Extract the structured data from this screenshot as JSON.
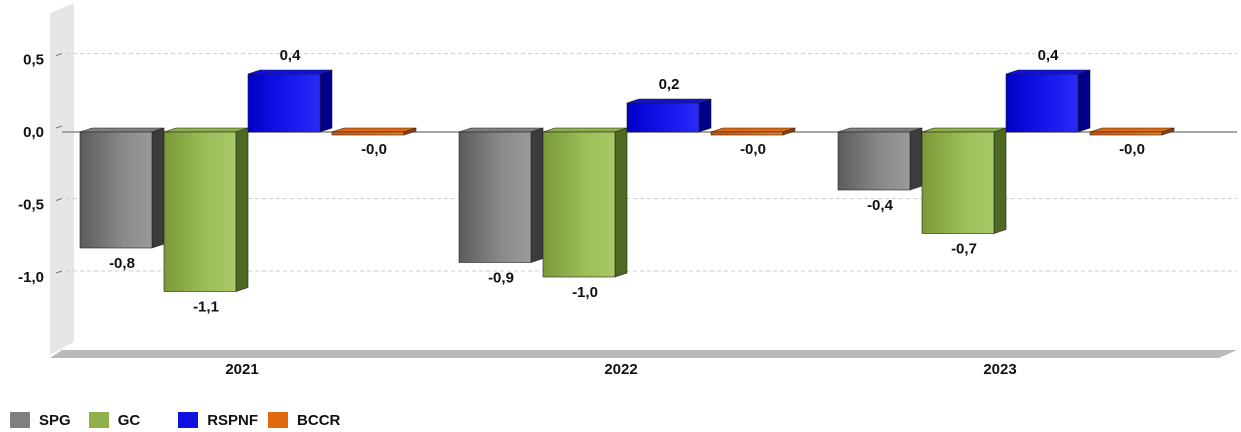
{
  "chart_data": {
    "type": "bar",
    "categories": [
      "2021",
      "2022",
      "2023"
    ],
    "series": [
      {
        "name": "SPG",
        "values": [
          -0.8,
          -0.9,
          -0.4
        ],
        "labels": [
          "-0,8",
          "-0,9",
          "-0,4"
        ],
        "color": "#7f7f7f"
      },
      {
        "name": "GC",
        "values": [
          -1.1,
          -1.0,
          -0.7
        ],
        "labels": [
          "-1,1",
          "-1,0",
          "-0,7"
        ],
        "color": "#8fb04a"
      },
      {
        "name": "RSPNF",
        "values": [
          0.4,
          0.2,
          0.4
        ],
        "labels": [
          "0,4",
          "0,2",
          "0,4"
        ],
        "color": "#1010e0"
      },
      {
        "name": "BCCR",
        "values": [
          -0.02,
          -0.02,
          -0.02
        ],
        "labels": [
          "-0,0",
          "-0,0",
          "-0,0"
        ],
        "color": "#e06a10"
      }
    ],
    "yticks": [
      0.5,
      0.0,
      -0.5,
      -1.0
    ],
    "ytick_labels": [
      "0,5",
      "0,0",
      "-0,5",
      "-1,0"
    ],
    "ylim": [
      -1.5,
      0.7
    ],
    "grid": true,
    "legend_position": "bottom-left",
    "title": "",
    "xlabel": "",
    "ylabel": ""
  }
}
